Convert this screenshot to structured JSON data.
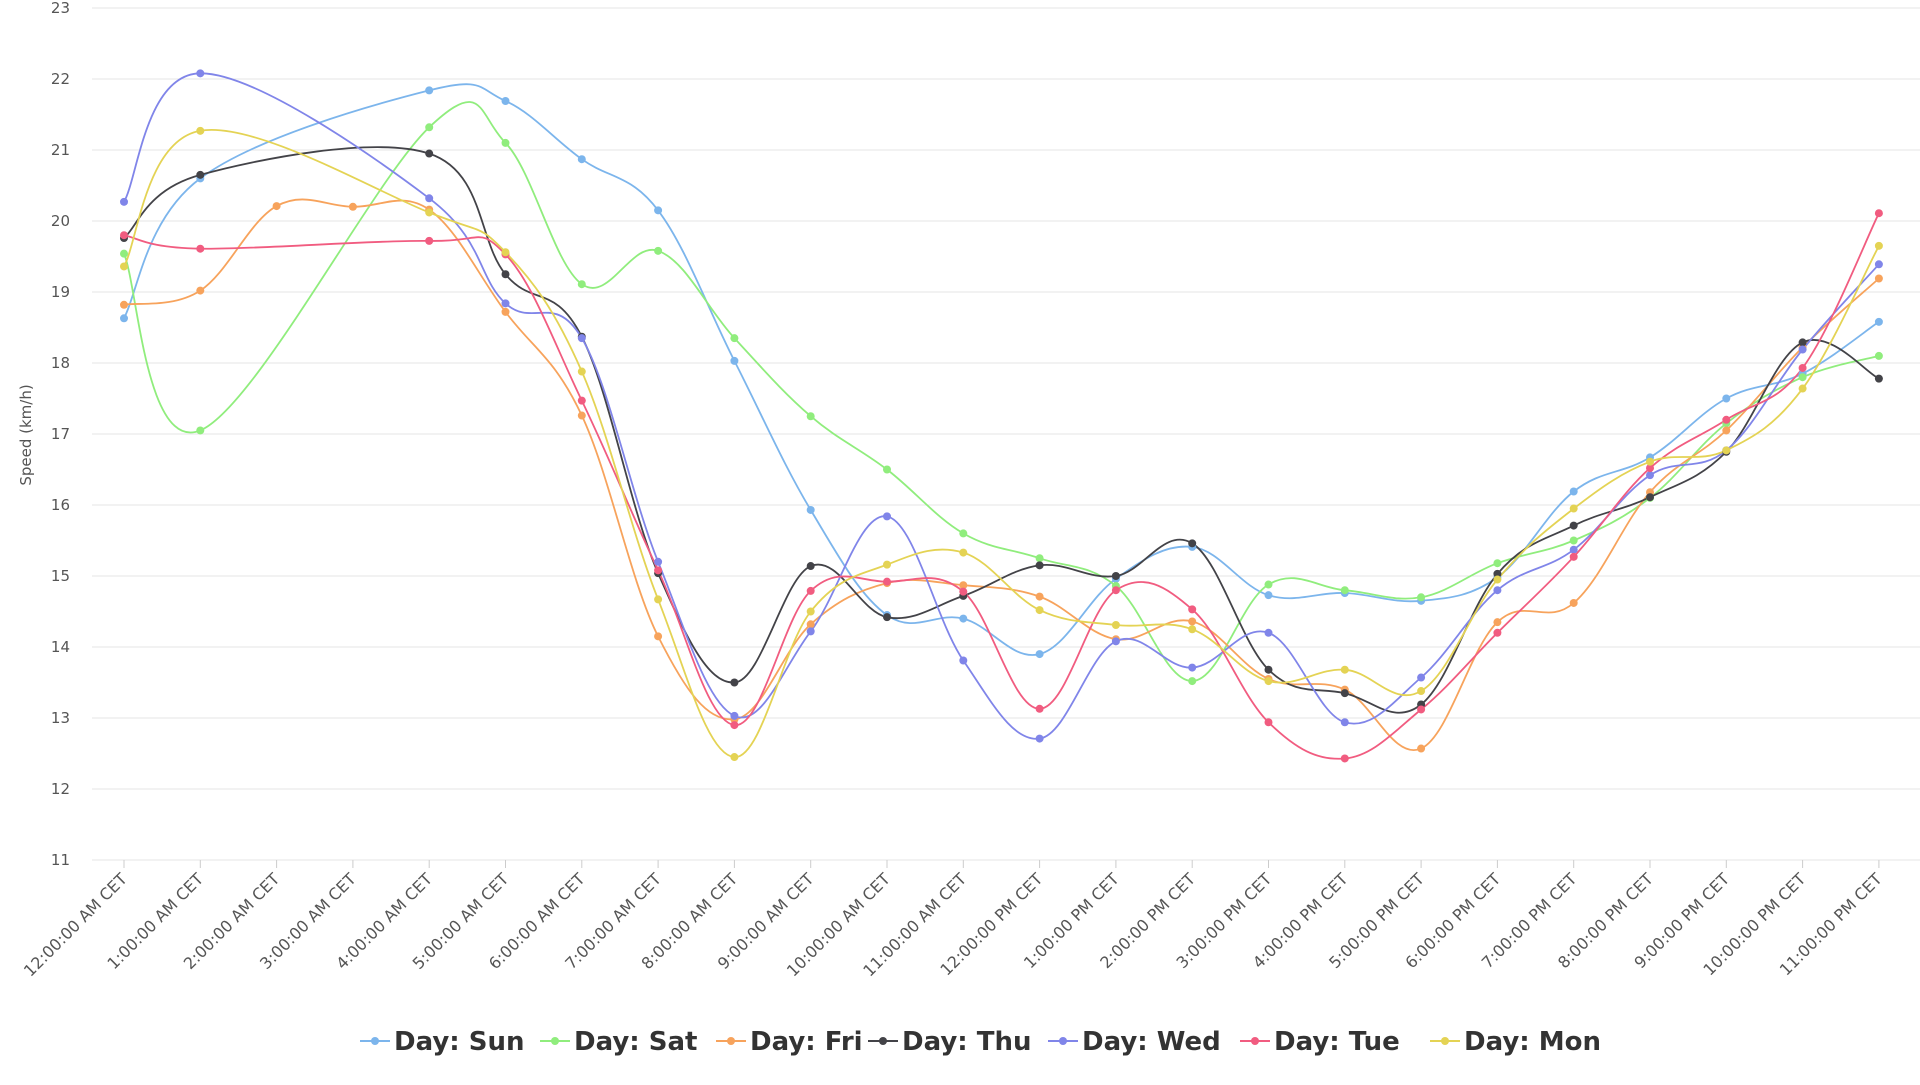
{
  "chart_data": {
    "type": "line",
    "ylabel": "Speed (km/h)",
    "xlabel": "",
    "ylim": [
      11,
      23
    ],
    "yticks": [
      11,
      12,
      13,
      14,
      15,
      16,
      17,
      18,
      19,
      20,
      21,
      22,
      23
    ],
    "grid": true,
    "legend": "bottom-center",
    "categories": [
      "12:00:00 AM CET",
      "1:00:00 AM CET",
      "2:00:00 AM CET",
      "3:00:00 AM CET",
      "4:00:00 AM CET",
      "5:00:00 AM CET",
      "6:00:00 AM CET",
      "7:00:00 AM CET",
      "8:00:00 AM CET",
      "9:00:00 AM CET",
      "10:00:00 AM CET",
      "11:00:00 AM CET",
      "12:00:00 PM CET",
      "1:00:00 PM CET",
      "2:00:00 PM CET",
      "3:00:00 PM CET",
      "4:00:00 PM CET",
      "5:00:00 PM CET",
      "6:00:00 PM CET",
      "7:00:00 PM CET",
      "8:00:00 PM CET",
      "9:00:00 PM CET",
      "10:00:00 PM CET",
      "11:00:00 PM CET"
    ],
    "series": [
      {
        "name": "Day: Sun",
        "color": "#7cb5ec",
        "values": [
          18.63,
          20.6,
          null,
          null,
          21.84,
          21.69,
          20.87,
          20.15,
          18.03,
          15.93,
          14.45,
          14.4,
          13.9,
          14.96,
          15.41,
          14.73,
          14.76,
          14.65,
          14.98,
          16.19,
          16.67,
          17.5,
          17.85,
          18.58
        ]
      },
      {
        "name": "Day: Sat",
        "color": "#90ed7d",
        "values": [
          19.54,
          17.05,
          null,
          null,
          21.32,
          21.1,
          19.11,
          19.58,
          18.35,
          17.25,
          16.5,
          15.6,
          15.25,
          14.86,
          13.52,
          14.88,
          14.8,
          14.7,
          15.18,
          15.5,
          16.1,
          17.15,
          17.8,
          18.1
        ]
      },
      {
        "name": "Day: Fri",
        "color": "#f7a35c",
        "values": [
          18.82,
          19.02,
          20.21,
          20.2,
          20.16,
          18.72,
          17.26,
          14.15,
          12.98,
          14.32,
          14.9,
          14.87,
          14.71,
          14.11,
          14.36,
          13.55,
          13.4,
          12.57,
          14.35,
          14.62,
          16.18,
          17.05,
          18.22,
          19.19
        ]
      },
      {
        "name": "Day: Thu",
        "color": "#434348",
        "values": [
          19.76,
          20.65,
          null,
          null,
          20.95,
          19.25,
          18.37,
          15.04,
          13.5,
          15.14,
          14.42,
          14.72,
          15.15,
          15.0,
          15.46,
          13.68,
          13.35,
          13.19,
          15.03,
          15.71,
          16.11,
          16.75,
          18.29,
          17.78
        ]
      },
      {
        "name": "Day: Wed",
        "color": "#8085e9",
        "values": [
          20.27,
          22.08,
          null,
          null,
          20.32,
          18.84,
          18.35,
          15.2,
          13.03,
          14.22,
          15.84,
          13.81,
          12.71,
          14.08,
          13.71,
          14.2,
          12.94,
          13.57,
          14.8,
          15.37,
          16.42,
          16.77,
          18.19,
          19.39
        ]
      },
      {
        "name": "Day: Tue",
        "color": "#f15c80",
        "values": [
          19.8,
          19.61,
          null,
          null,
          19.72,
          19.53,
          17.47,
          15.08,
          12.9,
          14.79,
          14.92,
          14.78,
          13.13,
          14.8,
          14.53,
          12.94,
          12.43,
          13.12,
          14.2,
          15.27,
          16.52,
          17.2,
          17.93,
          20.11
        ]
      },
      {
        "name": "Day: Mon",
        "color": "#e4d354",
        "values": [
          19.36,
          21.27,
          null,
          null,
          20.12,
          19.56,
          17.88,
          14.67,
          12.45,
          14.5,
          15.16,
          15.33,
          14.52,
          14.31,
          14.25,
          13.52,
          13.68,
          13.38,
          14.95,
          15.95,
          16.61,
          16.77,
          17.64,
          19.65
        ]
      }
    ]
  }
}
